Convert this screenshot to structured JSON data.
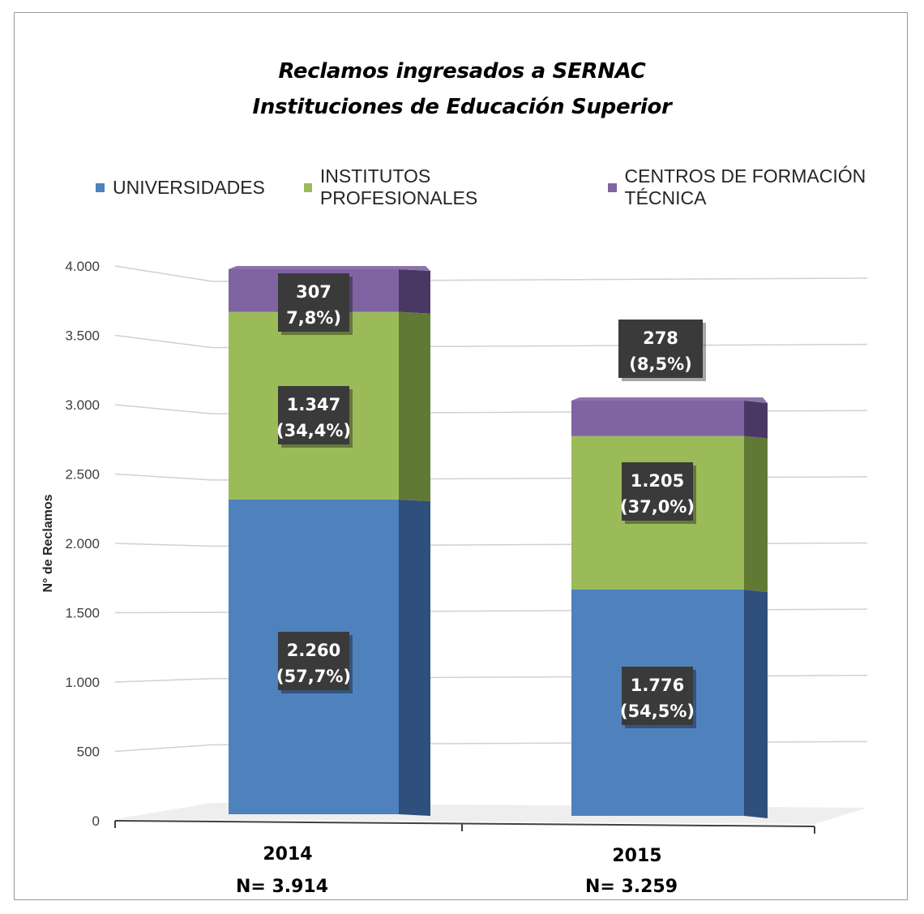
{
  "title": {
    "line1": "Reclamos ingresados  a SERNAC",
    "line2": "Instituciones de Educación Superior"
  },
  "chart_data": {
    "type": "bar",
    "stacked": true,
    "three_d": true,
    "categories": [
      "2014",
      "2015"
    ],
    "category_notes": [
      "N= 3.914",
      "N= 3.259"
    ],
    "series": [
      {
        "name": "UNIVERSIDADES",
        "color": "#4f81bd",
        "side_color": "#2f4f7c",
        "values": [
          2260,
          1776
        ],
        "labels": [
          "2.260",
          "1.776"
        ],
        "pct": [
          "(57,7%)",
          "(54,5%)"
        ]
      },
      {
        "name": "INSTITUTOS PROFESIONALES",
        "color": "#9bbb59",
        "side_color": "#607a35",
        "values": [
          1347,
          1205
        ],
        "labels": [
          "1.347",
          "1.205"
        ],
        "pct": [
          "(34,4%)",
          "(37,0%)"
        ]
      },
      {
        "name": "CENTROS DE FORMACIÓN TÉCNICA",
        "color": "#8064a2",
        "side_color": "#4a3864",
        "values": [
          307,
          278
        ],
        "labels": [
          "307",
          "278"
        ],
        "pct": [
          "7,8%)",
          "(8,5%)"
        ]
      }
    ],
    "ylabel": "N° de Reclamos",
    "ylim": [
      0,
      4000
    ],
    "yticks": [
      0,
      500,
      1000,
      1500,
      2000,
      2500,
      3000,
      3500,
      4000
    ],
    "ytick_labels": [
      "0",
      "500",
      "1.000",
      "1.500",
      "2.000",
      "2.500",
      "3.000",
      "3.500",
      "4.000"
    ],
    "legend_position": "top",
    "grid": true
  }
}
